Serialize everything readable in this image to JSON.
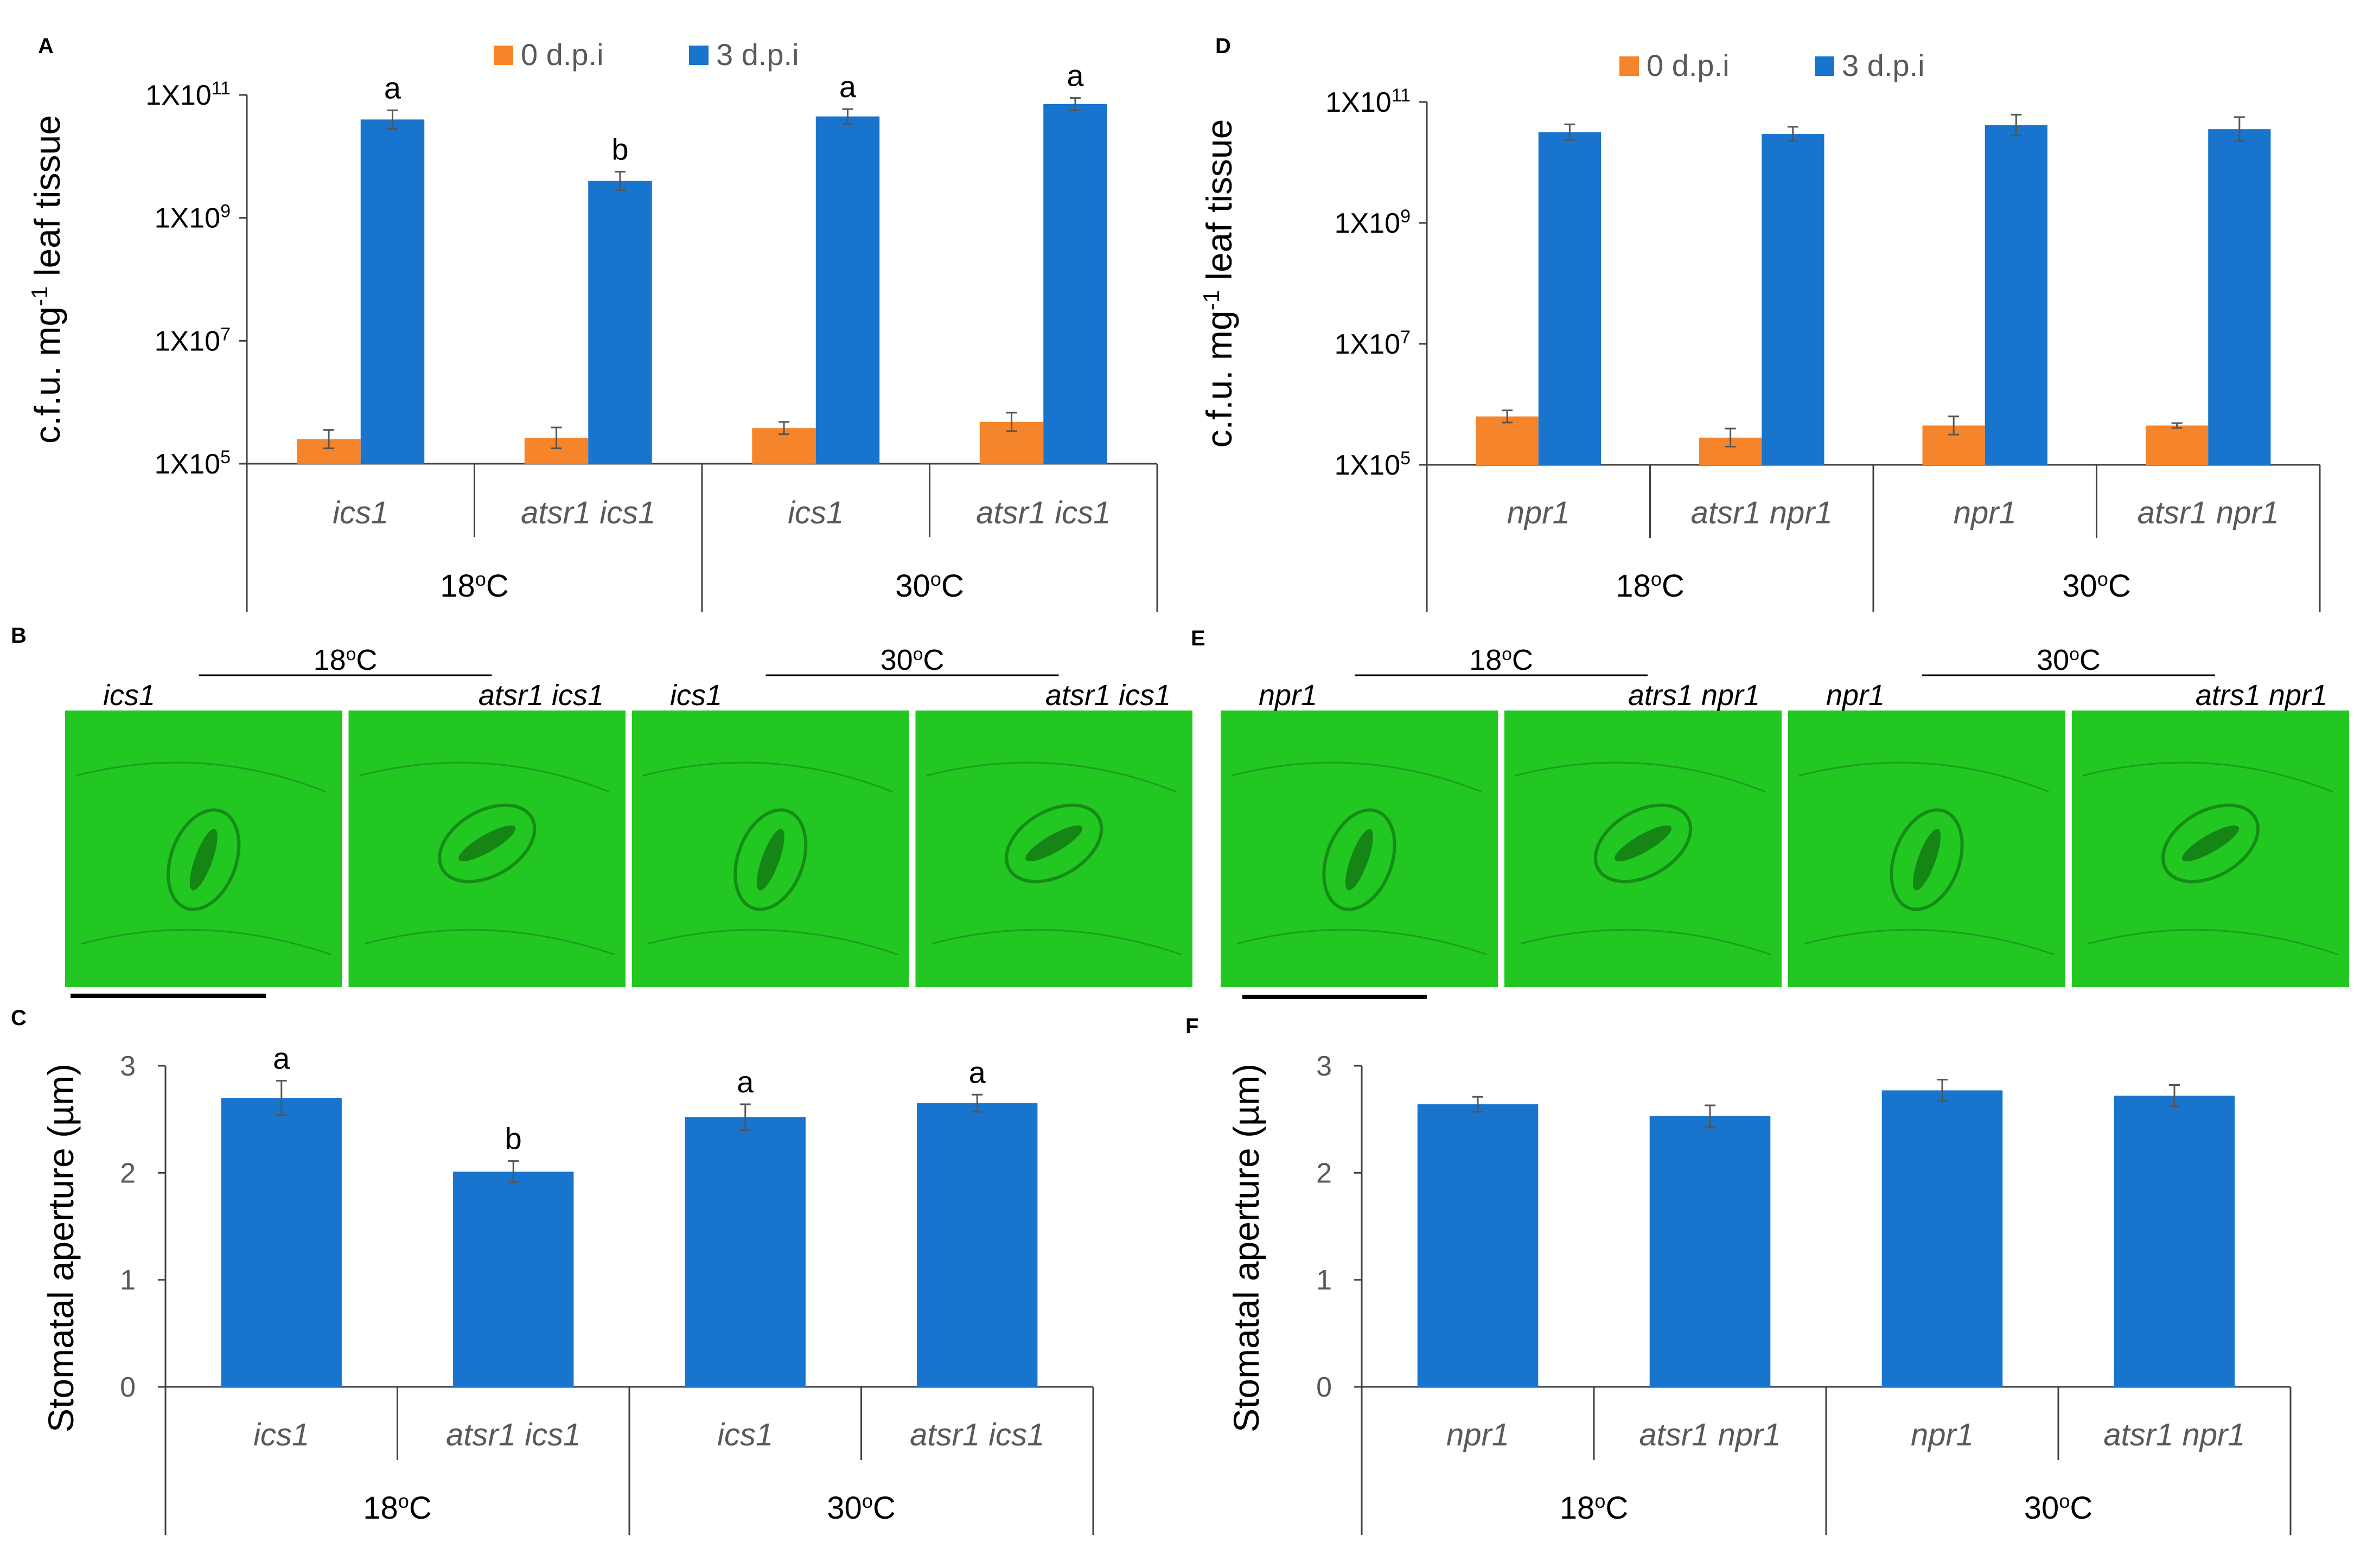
{
  "colors": {
    "orange": "#f5842a",
    "blue": "#1874cd",
    "axis": "#404040",
    "text": "#000000",
    "label_text": "#595959",
    "micro_bg": "#22c722",
    "micro_dark": "#0e5a0e"
  },
  "panels": {
    "A": "A",
    "B": "B",
    "C": "C",
    "D": "D",
    "E": "E",
    "F": "F"
  },
  "micrographs": [
    {
      "panel": "B",
      "groups": [
        {
          "temp": "18oC",
          "images": [
            "ics1",
            "atsr1 ics1"
          ]
        },
        {
          "temp": "30oC",
          "images": [
            "ics1",
            "atsr1 ics1"
          ]
        }
      ]
    },
    {
      "panel": "E",
      "groups": [
        {
          "temp": "18oC",
          "images": [
            "npr1",
            "atrs1 npr1"
          ]
        },
        {
          "temp": "30oC",
          "images": [
            "npr1",
            "atrs1 npr1"
          ]
        }
      ]
    }
  ],
  "chart_data": [
    {
      "panel": "A",
      "type": "bar",
      "ylabel": "c.f.u. mg-1 leaf tissue",
      "yscale": "log",
      "ylim_exp": [
        5,
        11
      ],
      "yticks": [
        {
          "label": "1X10",
          "exp": "11",
          "value_exp": 11
        },
        {
          "label": "1X10",
          "exp": "9",
          "value_exp": 9
        },
        {
          "label": "1X10",
          "exp": "7",
          "value_exp": 7
        },
        {
          "label": "1X10",
          "exp": "5",
          "value_exp": 5
        }
      ],
      "categories": [
        "ics1",
        "atsr1 ics1",
        "ics1",
        "atsr1 ics1"
      ],
      "groups": [
        {
          "label": "18oC",
          "span": 2
        },
        {
          "label": "30oC",
          "span": 2
        }
      ],
      "legend": [
        "0 d.p.i",
        "3 d.p.i"
      ],
      "series": [
        {
          "name": "0 d.p.i",
          "color": "orange",
          "values_exp": [
            5.4,
            5.42,
            5.58,
            5.68
          ],
          "err_exp": [
            0.15,
            0.17,
            0.1,
            0.15
          ]
        },
        {
          "name": "3 d.p.i",
          "color": "blue",
          "values_exp": [
            10.6,
            9.6,
            10.65,
            10.85
          ],
          "err_exp": [
            0.15,
            0.15,
            0.12,
            0.1
          ]
        }
      ],
      "annotations": [
        "a",
        "b",
        "a",
        "a"
      ]
    },
    {
      "panel": "C",
      "type": "bar",
      "ylabel": "Stomatal aperture (µm)",
      "ylim": [
        0,
        3
      ],
      "yticks": [
        "0",
        "1",
        "2",
        "3"
      ],
      "categories": [
        "ics1",
        "atsr1 ics1",
        "ics1",
        "atsr1 ics1"
      ],
      "groups": [
        {
          "label": "18oC",
          "span": 2
        },
        {
          "label": "30oC",
          "span": 2
        }
      ],
      "series": [
        {
          "name": "Stomatal aperture",
          "color": "blue",
          "values": [
            2.7,
            2.01,
            2.52,
            2.65
          ],
          "err": [
            0.16,
            0.1,
            0.12,
            0.08
          ]
        }
      ],
      "annotations": [
        "a",
        "b",
        "a",
        "a"
      ]
    },
    {
      "panel": "D",
      "type": "bar",
      "ylabel": "c.f.u. mg-1 leaf tissue",
      "yscale": "log",
      "ylim_exp": [
        5,
        11
      ],
      "yticks": [
        {
          "label": "1X10",
          "exp": "11",
          "value_exp": 11
        },
        {
          "label": "1X10",
          "exp": "9",
          "value_exp": 9
        },
        {
          "label": "1X10",
          "exp": "7",
          "value_exp": 7
        },
        {
          "label": "1X10",
          "exp": "5",
          "value_exp": 5
        }
      ],
      "categories": [
        "npr1",
        "atsr1 npr1",
        "npr1",
        "atsr1 npr1"
      ],
      "groups": [
        {
          "label": "18oC",
          "span": 2
        },
        {
          "label": "30oC",
          "span": 2
        }
      ],
      "legend": [
        "0 d.p.i",
        "3 d.p.i"
      ],
      "series": [
        {
          "name": "0 d.p.i",
          "color": "orange",
          "values_exp": [
            5.8,
            5.45,
            5.65,
            5.65
          ],
          "err_exp": [
            0.1,
            0.15,
            0.15,
            0.04
          ]
        },
        {
          "name": "3 d.p.i",
          "color": "blue",
          "values_exp": [
            10.5,
            10.47,
            10.62,
            10.55
          ],
          "err_exp": [
            0.13,
            0.12,
            0.17,
            0.2
          ]
        }
      ],
      "annotations": []
    },
    {
      "panel": "F",
      "type": "bar",
      "ylabel": "Stomatal aperture (µm)",
      "ylim": [
        0,
        3
      ],
      "yticks": [
        "0",
        "1",
        "2",
        "3"
      ],
      "categories": [
        "npr1",
        "atsr1 npr1",
        "npr1",
        "atsr1 npr1"
      ],
      "groups": [
        {
          "label": "18oC",
          "span": 2
        },
        {
          "label": "30oC",
          "span": 2
        }
      ],
      "series": [
        {
          "name": "Stomatal aperture",
          "color": "blue",
          "values": [
            2.64,
            2.53,
            2.77,
            2.72
          ],
          "err": [
            0.07,
            0.1,
            0.1,
            0.1
          ]
        }
      ],
      "annotations": []
    }
  ]
}
